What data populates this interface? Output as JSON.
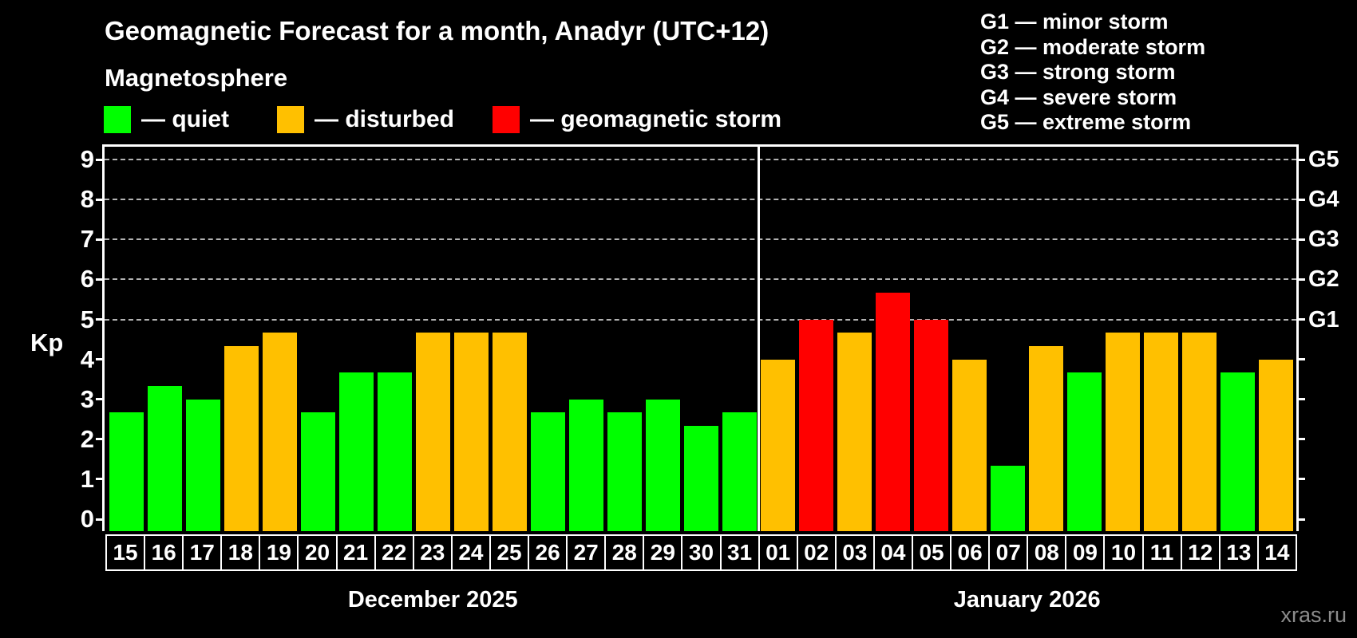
{
  "header": {
    "title": "Geomagnetic Forecast for a month, Anadyr (UTC+12)",
    "subtitle": "Magnetosphere"
  },
  "legend": {
    "items": [
      {
        "status": "quiet",
        "text": "— quiet",
        "color": "#00ff00"
      },
      {
        "status": "disturbed",
        "text": "— disturbed",
        "color": "#ffc000"
      },
      {
        "status": "storm",
        "text": "— geomagnetic storm",
        "color": "#ff0000"
      }
    ]
  },
  "storm_scale_legend": {
    "lines": [
      "G1 — minor storm",
      "G2 — moderate storm",
      "G3 — strong storm",
      "G4 — severe storm",
      "G5 — extreme storm"
    ]
  },
  "axis": {
    "y_label": "Kp",
    "left_ticks": [
      "0",
      "1",
      "2",
      "3",
      "4",
      "5",
      "6",
      "7",
      "8",
      "9"
    ],
    "right_labels": [
      {
        "kp": 5,
        "text": "G1"
      },
      {
        "kp": 6,
        "text": "G2"
      },
      {
        "kp": 7,
        "text": "G3"
      },
      {
        "kp": 8,
        "text": "G4"
      },
      {
        "kp": 9,
        "text": "G5"
      }
    ]
  },
  "watermark": "xras.ru",
  "colors": {
    "quiet": "#00ff00",
    "disturbed": "#ffc000",
    "storm": "#ff0000",
    "grid": "#b3b3b3",
    "axis": "#ffffff",
    "background": "#000000",
    "watermark": "#8c8c8c"
  },
  "chart_data": {
    "type": "bar",
    "title": "Geomagnetic Forecast for a month, Anadyr (UTC+12)",
    "ylabel": "Kp",
    "ylim": [
      0,
      9
    ],
    "legend_position": "top",
    "grid": "horizontal dashed lines at Kp 5-9 only",
    "gridlines_at": [
      5,
      6,
      7,
      8,
      9
    ],
    "months": [
      {
        "label": "December 2025",
        "days": [
          "15",
          "16",
          "17",
          "18",
          "19",
          "20",
          "21",
          "22",
          "23",
          "24",
          "25",
          "26",
          "27",
          "28",
          "29",
          "30",
          "31"
        ],
        "values": [
          2.67,
          3.33,
          3.0,
          4.33,
          4.67,
          2.67,
          3.67,
          3.67,
          4.67,
          4.67,
          4.67,
          2.67,
          3.0,
          2.67,
          3.0,
          2.33,
          2.67
        ],
        "status": [
          "quiet",
          "quiet",
          "quiet",
          "disturbed",
          "disturbed",
          "quiet",
          "quiet",
          "quiet",
          "disturbed",
          "disturbed",
          "disturbed",
          "quiet",
          "quiet",
          "quiet",
          "quiet",
          "quiet",
          "quiet"
        ]
      },
      {
        "label": "January 2026",
        "days": [
          "01",
          "02",
          "03",
          "04",
          "05",
          "06",
          "07",
          "08",
          "09",
          "10",
          "11",
          "12",
          "13",
          "14"
        ],
        "values": [
          4.0,
          5.0,
          4.67,
          5.67,
          5.0,
          4.0,
          1.33,
          4.33,
          3.67,
          4.67,
          4.67,
          4.67,
          3.67,
          4.0
        ],
        "status": [
          "disturbed",
          "storm",
          "disturbed",
          "storm",
          "storm",
          "disturbed",
          "quiet",
          "disturbed",
          "quiet",
          "disturbed",
          "disturbed",
          "disturbed",
          "quiet",
          "disturbed"
        ]
      }
    ]
  }
}
